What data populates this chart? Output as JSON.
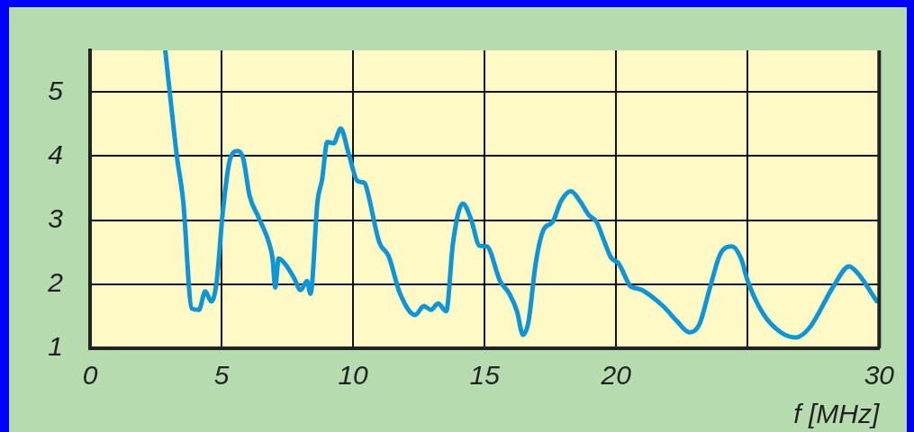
{
  "chart_data": {
    "type": "line",
    "xlabel": "f [MHz]",
    "xlim": [
      0,
      30
    ],
    "xticks": [
      0,
      5,
      10,
      15,
      20,
      {
        "value": 25,
        "label": null
      },
      30
    ],
    "ylim": [
      1,
      5.65
    ],
    "yticks": [
      1,
      2,
      3,
      4,
      5
    ],
    "grid": true,
    "legend": false,
    "line_style": "solid",
    "series": [
      {
        "color": "#0a96d8",
        "x": [
          2.86,
          3.03,
          3.3,
          3.54,
          3.87,
          4.14,
          4.38,
          4.61,
          4.81,
          5.05,
          5.32,
          5.62,
          5.83,
          6.06,
          6.4,
          6.8,
          6.94,
          7.04,
          7.17,
          7.41,
          7.74,
          8.01,
          8.25,
          8.38,
          8.65,
          8.82,
          9.02,
          9.26,
          9.53,
          9.83,
          10.17,
          10.44,
          10.54,
          11.0,
          11.35,
          11.78,
          12.36,
          12.69,
          12.96,
          13.23,
          13.54,
          13.8,
          14.17,
          14.48,
          14.81,
          15.08,
          15.59,
          15.93,
          16.23,
          16.46,
          16.67,
          16.94,
          17.24,
          17.58,
          17.91,
          18.28,
          18.62,
          18.96,
          19.26,
          19.53,
          19.8,
          20.1,
          20.54,
          20.64,
          20.98,
          21.78,
          22.32,
          22.79,
          23.16,
          23.57,
          23.97,
          24.41,
          24.75,
          25.02,
          25.59,
          26.26,
          26.84,
          27.37,
          28.28,
          28.86,
          29.19,
          29.9
        ],
        "values": [
          5.65,
          5.0,
          4.0,
          3.3,
          1.62,
          1.6,
          1.89,
          1.73,
          2.03,
          3.14,
          3.95,
          4.08,
          3.95,
          3.39,
          3.05,
          2.65,
          2.4,
          1.95,
          2.4,
          2.32,
          2.11,
          1.91,
          2.05,
          1.85,
          3.3,
          3.63,
          4.22,
          4.2,
          4.43,
          4.04,
          3.61,
          3.58,
          3.46,
          2.65,
          2.44,
          1.86,
          1.52,
          1.66,
          1.6,
          1.7,
          1.58,
          2.65,
          3.26,
          3.02,
          2.6,
          2.59,
          2.05,
          1.86,
          1.58,
          1.21,
          1.42,
          2.32,
          2.85,
          2.97,
          3.3,
          3.45,
          3.3,
          3.08,
          2.97,
          2.69,
          2.42,
          2.32,
          1.97,
          1.95,
          1.91,
          1.66,
          1.42,
          1.25,
          1.37,
          1.95,
          2.48,
          2.59,
          2.4,
          2.03,
          1.54,
          1.25,
          1.17,
          1.33,
          1.98,
          2.28,
          2.17,
          1.74
        ]
      }
    ]
  }
}
